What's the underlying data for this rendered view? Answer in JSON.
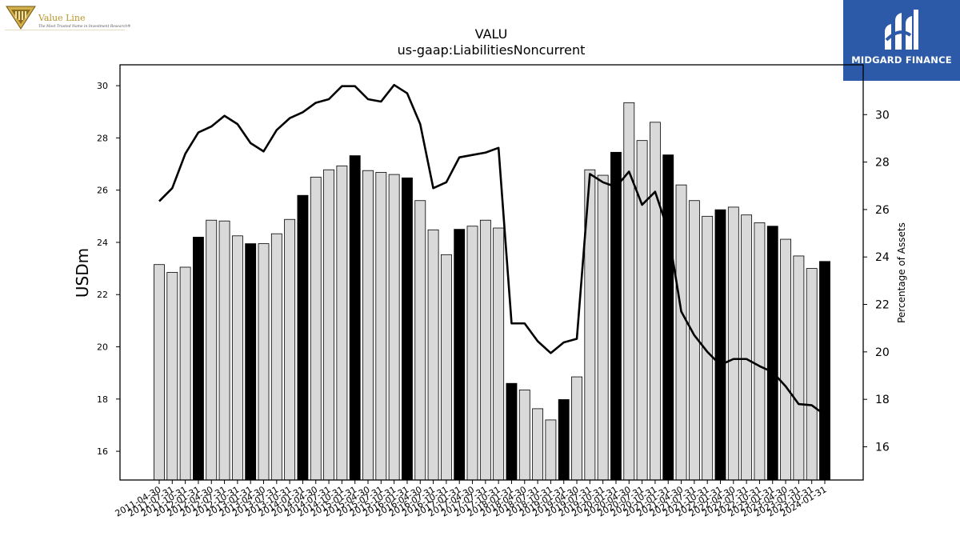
{
  "header": {
    "left_logo": {
      "brand": "Value Line",
      "tagline": "The Most Trusted Name in Investment Research®"
    },
    "right_logo": {
      "brand": "MIDGARD FINANCE"
    }
  },
  "chart_data": {
    "type": "bar",
    "title": "VALU",
    "subtitle": "us-gaap:LiabilitiesNoncurrent",
    "ylabel": "USDm",
    "y2label": "Percentage of Assets",
    "ylim": [
      14.9,
      30.8
    ],
    "y2lim": [
      14.6,
      32.1
    ],
    "yticks": [
      16,
      18,
      20,
      22,
      24,
      26,
      28,
      30
    ],
    "y2ticks": [
      16,
      18,
      20,
      22,
      24,
      26,
      28,
      30
    ],
    "colors": {
      "bar_default": "#d9d9d9",
      "bar_fiscal_year_end": "#000000",
      "line": "#000000"
    },
    "categories": [
      "2011-04-30",
      "2011-07-31",
      "2011-10-31",
      "2012-01-31",
      "2012-04-30",
      "2012-07-31",
      "2012-10-31",
      "2013-01-31",
      "2013-04-30",
      "2013-07-31",
      "2013-10-31",
      "2014-01-31",
      "2014-04-30",
      "2014-07-31",
      "2014-10-31",
      "2015-01-31",
      "2015-04-30",
      "2015-07-31",
      "2015-10-31",
      "2016-01-31",
      "2016-04-30",
      "2016-07-31",
      "2016-10-31",
      "2017-01-31",
      "2017-04-30",
      "2017-07-31",
      "2017-10-31",
      "2018-01-31",
      "2018-04-30",
      "2018-07-31",
      "2018-10-31",
      "2019-01-31",
      "2019-04-30",
      "2019-07-31",
      "2019-10-31",
      "2020-01-31",
      "2020-04-30",
      "2020-07-31",
      "2020-10-31",
      "2021-01-31",
      "2021-04-30",
      "2021-07-31",
      "2021-10-31",
      "2022-01-31",
      "2022-04-30",
      "2022-07-31",
      "2022-10-31",
      "2023-01-31",
      "2023-04-30",
      "2023-07-31",
      "2023-10-31",
      "2024-01-31"
    ],
    "series": [
      {
        "type": "bar",
        "axis": "left",
        "values": [
          23.15,
          22.85,
          23.05,
          24.2,
          24.85,
          24.82,
          24.25,
          23.95,
          23.95,
          24.33,
          24.88,
          25.8,
          26.5,
          26.78,
          26.93,
          27.32,
          26.75,
          26.68,
          26.6,
          26.47,
          25.6,
          24.48,
          23.53,
          24.5,
          24.62,
          24.85,
          24.55,
          18.6,
          18.35,
          17.63,
          17.2,
          17.98,
          18.85,
          26.78,
          26.57,
          27.45,
          29.35,
          27.9,
          28.6,
          27.35,
          26.2,
          25.6,
          25.0,
          25.25,
          25.35,
          25.05,
          24.75,
          24.62,
          24.12,
          23.48,
          23.0,
          23.27
        ],
        "highlight": [
          false,
          false,
          false,
          true,
          false,
          false,
          false,
          true,
          false,
          false,
          false,
          true,
          false,
          false,
          false,
          true,
          false,
          false,
          false,
          true,
          false,
          false,
          false,
          true,
          false,
          false,
          false,
          true,
          false,
          false,
          false,
          true,
          false,
          false,
          false,
          true,
          false,
          false,
          false,
          true,
          false,
          false,
          false,
          true,
          false,
          false,
          false,
          true,
          false,
          false,
          false,
          true
        ]
      },
      {
        "type": "line",
        "axis": "right",
        "values": [
          26.35,
          26.9,
          28.35,
          29.25,
          29.5,
          29.95,
          29.6,
          28.8,
          28.45,
          29.35,
          29.85,
          30.1,
          30.5,
          30.65,
          31.2,
          31.2,
          30.65,
          30.55,
          31.25,
          30.9,
          29.6,
          26.9,
          27.15,
          28.2,
          28.3,
          28.4,
          28.6,
          21.2,
          21.2,
          20.45,
          19.95,
          20.4,
          20.55,
          27.5,
          27.15,
          26.95,
          27.6,
          26.2,
          26.75,
          25.1,
          21.7,
          20.7,
          20.0,
          19.45,
          19.7,
          19.7,
          19.4,
          19.15,
          18.55,
          17.8,
          17.75,
          17.35
        ]
      }
    ]
  }
}
